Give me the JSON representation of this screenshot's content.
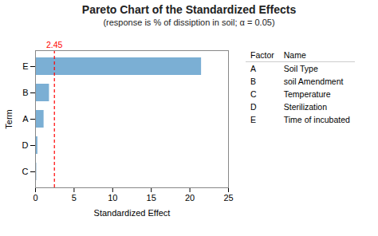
{
  "chart_data": {
    "type": "bar",
    "orientation": "horizontal",
    "title": "Pareto Chart of the Standardized Effects",
    "subtitle": "(response is % of dissiption in soil; α = 0.05)",
    "xlabel": "Standardized Effect",
    "ylabel": "Term",
    "categories": [
      "C",
      "D",
      "A",
      "B",
      "E"
    ],
    "values": [
      0.15,
      0.3,
      1.1,
      1.8,
      21.5
    ],
    "color": "#7BAFD4",
    "xlim": [
      0,
      25
    ],
    "xticks": [
      0,
      5,
      10,
      15,
      20,
      25
    ],
    "threshold": {
      "value": 2.45,
      "label": "2.45",
      "color": "red"
    },
    "factor_table": {
      "columns": [
        "Factor",
        "Name"
      ],
      "rows": [
        [
          "A",
          "Soil Type"
        ],
        [
          "B",
          "soil Amendment"
        ],
        [
          "C",
          "Temperature"
        ],
        [
          "D",
          "Sterilization"
        ],
        [
          "E",
          "Time of incubated"
        ]
      ]
    }
  }
}
